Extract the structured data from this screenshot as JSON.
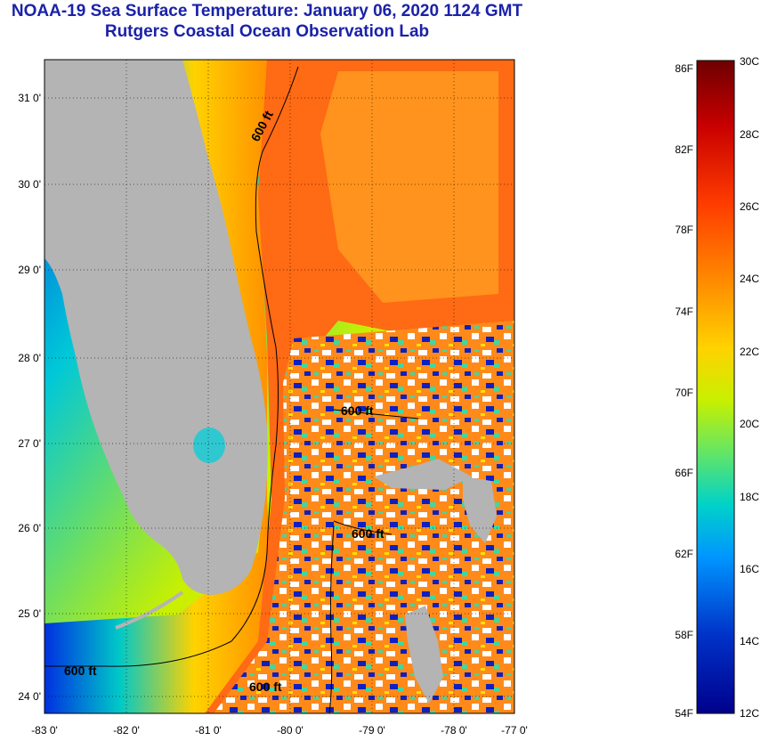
{
  "header": {
    "title": "NOAA-19 Sea Surface Temperature:  January 06, 2020 1124 GMT",
    "subtitle": "Rutgers Coastal Ocean Observation Lab"
  },
  "map": {
    "lat_labels": [
      "31 0'",
      "30 0'",
      "29 0'",
      "28 0'",
      "27 0'",
      "26 0'",
      "25 0'",
      "24 0'"
    ],
    "lon_labels": [
      "-83 0'",
      "-82 0'",
      "-81 0'",
      "-80 0'",
      "-79 0'",
      "-78 0'",
      "-77 0'"
    ],
    "contour_labels": [
      "600 ft",
      "600 ft",
      "600 ft",
      "600 ft",
      "600 ft"
    ],
    "land_color": "#b4b4b4"
  },
  "colorbar": {
    "fahrenheit_labels": [
      "86F",
      "82F",
      "78F",
      "74F",
      "70F",
      "66F",
      "62F",
      "58F",
      "54F"
    ],
    "celsius_labels": [
      "30C",
      "28C",
      "26C",
      "24C",
      "22C",
      "20C",
      "18C",
      "16C",
      "14C",
      "12C"
    ],
    "colors": [
      "#6e0000",
      "#c80000",
      "#ff3c00",
      "#ff8c00",
      "#ffd200",
      "#c8f000",
      "#64e664",
      "#00d2c8",
      "#0096ff",
      "#0032c8",
      "#00008c"
    ]
  }
}
